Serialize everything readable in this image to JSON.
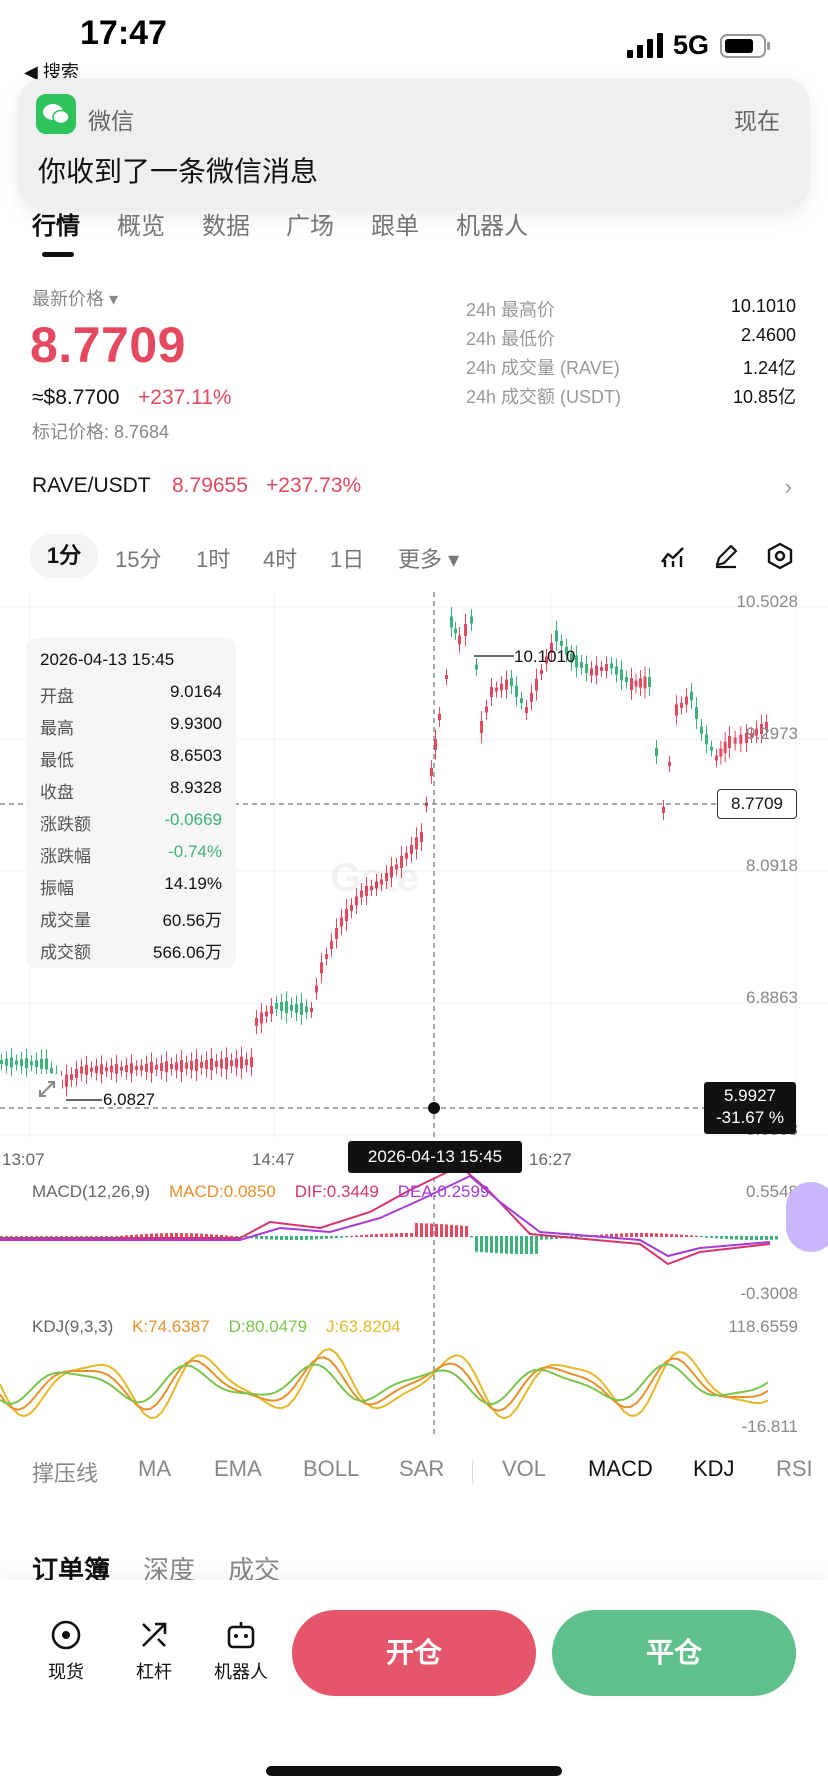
{
  "status_bar": {
    "time": "17:47",
    "back_label": "◀ 搜索",
    "network": "5G"
  },
  "notification": {
    "app_name": "微信",
    "time": "现在",
    "message": "你收到了一条微信消息"
  },
  "nav_tabs": [
    {
      "label": "行情",
      "active": true
    },
    {
      "label": "概览"
    },
    {
      "label": "数据"
    },
    {
      "label": "广场"
    },
    {
      "label": "跟单"
    },
    {
      "label": "机器人"
    }
  ],
  "price": {
    "label": "最新价格 ▾",
    "last": "8.7709",
    "usd": "≈$8.7700",
    "change": "+237.11%",
    "mark": "标记价格: 8.7684"
  },
  "stats": [
    {
      "label": "24h 最高价",
      "value": "10.1010"
    },
    {
      "label": "24h 最低价",
      "value": "2.4600"
    },
    {
      "label": "24h 成交量 (RAVE)",
      "value": "1.24亿"
    },
    {
      "label": "24h 成交额 (USDT)",
      "value": "10.85亿"
    }
  ],
  "pair": {
    "name": "RAVE/USDT",
    "price": "8.79655",
    "change": "+237.73%",
    "arrow": "›"
  },
  "timeframes": [
    {
      "label": "1分",
      "active": true
    },
    {
      "label": "15分"
    },
    {
      "label": "1时"
    },
    {
      "label": "4时"
    },
    {
      "label": "1日"
    },
    {
      "label": "更多 ▾"
    }
  ],
  "chart": {
    "y_ticks": [
      "10.5028",
      "9.2973",
      "8.0918",
      "6.8863",
      "5.6808"
    ],
    "x_ticks": [
      "13:07",
      "14:47",
      "16:27"
    ],
    "high_label": "10.1010",
    "low_label": "6.0827",
    "last_tag": "8.7709",
    "cross_price": "5.9927",
    "cross_pct": "-31.67 %",
    "cross_time": "2026-04-13 15:45",
    "watermark": "Gate",
    "colors": {
      "up": "#e5485f",
      "down": "#3cb37a"
    }
  },
  "tooltip": {
    "time": "2026-04-13 15:45",
    "rows": [
      {
        "label": "开盘",
        "value": "9.0164"
      },
      {
        "label": "最高",
        "value": "9.9300"
      },
      {
        "label": "最低",
        "value": "8.6503"
      },
      {
        "label": "收盘",
        "value": "8.9328"
      },
      {
        "label": "涨跌额",
        "value": "-0.0669",
        "color": "#3cb37a"
      },
      {
        "label": "涨跌幅",
        "value": "-0.74%",
        "color": "#3cb37a"
      },
      {
        "label": "振幅",
        "value": "14.19%"
      },
      {
        "label": "成交量",
        "value": "60.56万"
      },
      {
        "label": "成交额",
        "value": "566.06万"
      }
    ]
  },
  "macd": {
    "name": "MACD(12,26,9)",
    "macd": "MACD:0.0850",
    "dif": "DIF:0.3449",
    "dea": "DEA:0.2599",
    "top": "0.5548",
    "bottom": "-0.3008"
  },
  "kdj": {
    "name": "KDJ(9,3,3)",
    "k": "K:74.6387",
    "d": "D:80.0479",
    "j": "J:63.8204",
    "top": "118.6559",
    "bottom": "-16.811"
  },
  "indicator_tabs": [
    {
      "label": "撑压线"
    },
    {
      "label": "MA"
    },
    {
      "label": "EMA"
    },
    {
      "label": "BOLL"
    },
    {
      "label": "SAR"
    },
    {
      "label": "VOL"
    },
    {
      "label": "MACD",
      "active": true
    },
    {
      "label": "KDJ",
      "active": true
    },
    {
      "label": "RSI"
    }
  ],
  "book_tabs": [
    {
      "label": "订单簿",
      "active": true
    },
    {
      "label": "深度"
    },
    {
      "label": "成交"
    }
  ],
  "bottom_bar": {
    "items": [
      {
        "label": "现货",
        "icon": "spot-icon"
      },
      {
        "label": "杠杆",
        "icon": "leverage-icon"
      },
      {
        "label": "机器人",
        "icon": "robot-icon"
      }
    ],
    "open": "开仓",
    "close": "平仓"
  }
}
